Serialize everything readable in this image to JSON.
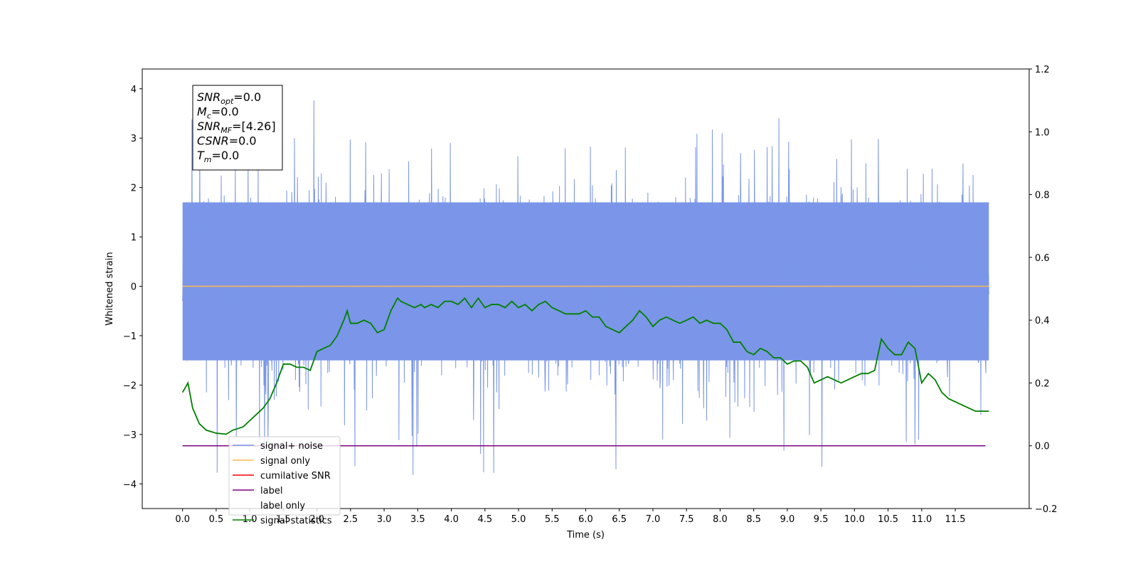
{
  "chart_data": {
    "type": "line",
    "xlabel": "Time (s)",
    "ylabel": "Whitened strain",
    "xlim": [
      -0.6,
      12.6
    ],
    "ylim_left": [
      -4.5,
      4.4
    ],
    "ylim_right": [
      -0.2,
      1.2
    ],
    "x_ticks": [
      0.0,
      0.5,
      1.0,
      1.5,
      2.0,
      2.5,
      3.0,
      3.5,
      4.0,
      4.5,
      5.0,
      5.5,
      6.0,
      6.5,
      7.0,
      7.5,
      8.0,
      8.5,
      9.0,
      9.5,
      10.0,
      10.5,
      11.0,
      11.5
    ],
    "x_tick_labels": [
      "0.0",
      "0.5",
      "1.0",
      "1.5",
      "2.0",
      "2.5",
      "3.0",
      "3.5",
      "4.0",
      "4.5",
      "5.0",
      "5.5",
      "6.0",
      "6.5",
      "7.0",
      "7.5",
      "8.0",
      "8.5",
      "9.0",
      "9.5",
      "10.0",
      "10.5",
      "11.0",
      "11.5"
    ],
    "y_ticks_left": [
      4,
      3,
      2,
      1,
      0,
      -1,
      -2,
      -3,
      -4
    ],
    "y_tick_labels_left": [
      "4",
      "3",
      "2",
      "1",
      "0",
      "−1",
      "−2",
      "−3",
      "−4"
    ],
    "y_ticks_right": [
      1.2,
      1.0,
      0.8,
      0.6,
      0.4,
      0.2,
      0.0,
      -0.2
    ],
    "y_tick_labels_right": [
      "1.2",
      "1.0",
      "0.8",
      "0.6",
      "0.4",
      "0.2",
      "0.0",
      "−0.2"
    ],
    "grid": false,
    "legend_position": "lower-left",
    "series": [
      {
        "name": "signal+ noise",
        "axis": "left",
        "color": "#7b96e8",
        "style": "noise-band",
        "x_range": [
          0.0,
          12.0
        ],
        "band_upper": 1.7,
        "band_lower": -1.5,
        "spike_max": 4.02,
        "spike_min": -4.1
      },
      {
        "name": "signal only",
        "axis": "left",
        "color": "#ffb74d",
        "x": [
          0.0,
          12.0
        ],
        "y": [
          0.0,
          0.0
        ]
      },
      {
        "name": "cumilative SNR",
        "axis": "right",
        "color": "#ff0000",
        "x": [],
        "y": []
      },
      {
        "name": "label",
        "axis": "right",
        "color": "#800080",
        "x": [
          0.0,
          11.95
        ],
        "y": [
          0.0,
          0.0
        ]
      },
      {
        "name": "label only",
        "axis": "right",
        "color": "#ffffff",
        "x": [],
        "y": []
      },
      {
        "name": "signal statistics",
        "axis": "right",
        "color": "#008000",
        "x": [
          0.0,
          0.08,
          0.15,
          0.25,
          0.35,
          0.5,
          0.65,
          0.75,
          0.9,
          1.0,
          1.1,
          1.2,
          1.3,
          1.4,
          1.5,
          1.6,
          1.7,
          1.8,
          1.9,
          2.0,
          2.1,
          2.2,
          2.3,
          2.4,
          2.45,
          2.5,
          2.6,
          2.7,
          2.8,
          2.9,
          3.0,
          3.1,
          3.2,
          3.25,
          3.35,
          3.45,
          3.55,
          3.6,
          3.7,
          3.8,
          3.9,
          4.0,
          4.1,
          4.2,
          4.3,
          4.4,
          4.5,
          4.6,
          4.7,
          4.8,
          4.9,
          5.0,
          5.1,
          5.2,
          5.3,
          5.4,
          5.5,
          5.6,
          5.7,
          5.8,
          5.9,
          6.0,
          6.1,
          6.2,
          6.3,
          6.4,
          6.5,
          6.6,
          6.7,
          6.8,
          6.9,
          7.0,
          7.1,
          7.2,
          7.3,
          7.4,
          7.5,
          7.6,
          7.7,
          7.8,
          7.9,
          8.0,
          8.1,
          8.2,
          8.3,
          8.4,
          8.5,
          8.6,
          8.7,
          8.8,
          8.9,
          9.0,
          9.1,
          9.2,
          9.3,
          9.4,
          9.5,
          9.6,
          9.7,
          9.8,
          9.9,
          10.0,
          10.1,
          10.2,
          10.3,
          10.4,
          10.5,
          10.6,
          10.7,
          10.8,
          10.9,
          11.0,
          11.1,
          11.2,
          11.3,
          11.4,
          11.5,
          11.6,
          11.7,
          11.8,
          11.9,
          12.0
        ],
        "y": [
          0.17,
          0.2,
          0.12,
          0.07,
          0.05,
          0.04,
          0.037,
          0.05,
          0.06,
          0.08,
          0.1,
          0.12,
          0.15,
          0.2,
          0.26,
          0.26,
          0.25,
          0.25,
          0.24,
          0.3,
          0.31,
          0.32,
          0.35,
          0.4,
          0.43,
          0.39,
          0.39,
          0.4,
          0.39,
          0.36,
          0.37,
          0.43,
          0.47,
          0.46,
          0.45,
          0.44,
          0.45,
          0.44,
          0.45,
          0.44,
          0.46,
          0.46,
          0.45,
          0.47,
          0.44,
          0.47,
          0.44,
          0.45,
          0.45,
          0.44,
          0.46,
          0.44,
          0.45,
          0.43,
          0.45,
          0.46,
          0.44,
          0.43,
          0.42,
          0.42,
          0.42,
          0.43,
          0.41,
          0.41,
          0.38,
          0.37,
          0.36,
          0.38,
          0.4,
          0.43,
          0.41,
          0.38,
          0.4,
          0.41,
          0.4,
          0.39,
          0.4,
          0.41,
          0.39,
          0.4,
          0.39,
          0.39,
          0.37,
          0.33,
          0.33,
          0.3,
          0.29,
          0.31,
          0.3,
          0.28,
          0.28,
          0.26,
          0.27,
          0.27,
          0.25,
          0.2,
          0.21,
          0.22,
          0.21,
          0.2,
          0.21,
          0.22,
          0.23,
          0.23,
          0.24,
          0.34,
          0.31,
          0.29,
          0.29,
          0.33,
          0.31,
          0.2,
          0.23,
          0.21,
          0.17,
          0.15,
          0.14,
          0.13,
          0.12,
          0.11,
          0.11,
          0.11
        ]
      }
    ],
    "info_box": {
      "lines": [
        {
          "name": "SNR",
          "sub": "opt",
          "value": "=0.0"
        },
        {
          "name": "M",
          "sub": "c",
          "value": "=0.0"
        },
        {
          "name": "SNR",
          "sub": "MF",
          "value": "=[4.26]"
        },
        {
          "name": "CSNR",
          "sub": "",
          "value": "=0.0"
        },
        {
          "name": "T",
          "sub": "m",
          "value": "=0.0"
        }
      ]
    }
  }
}
